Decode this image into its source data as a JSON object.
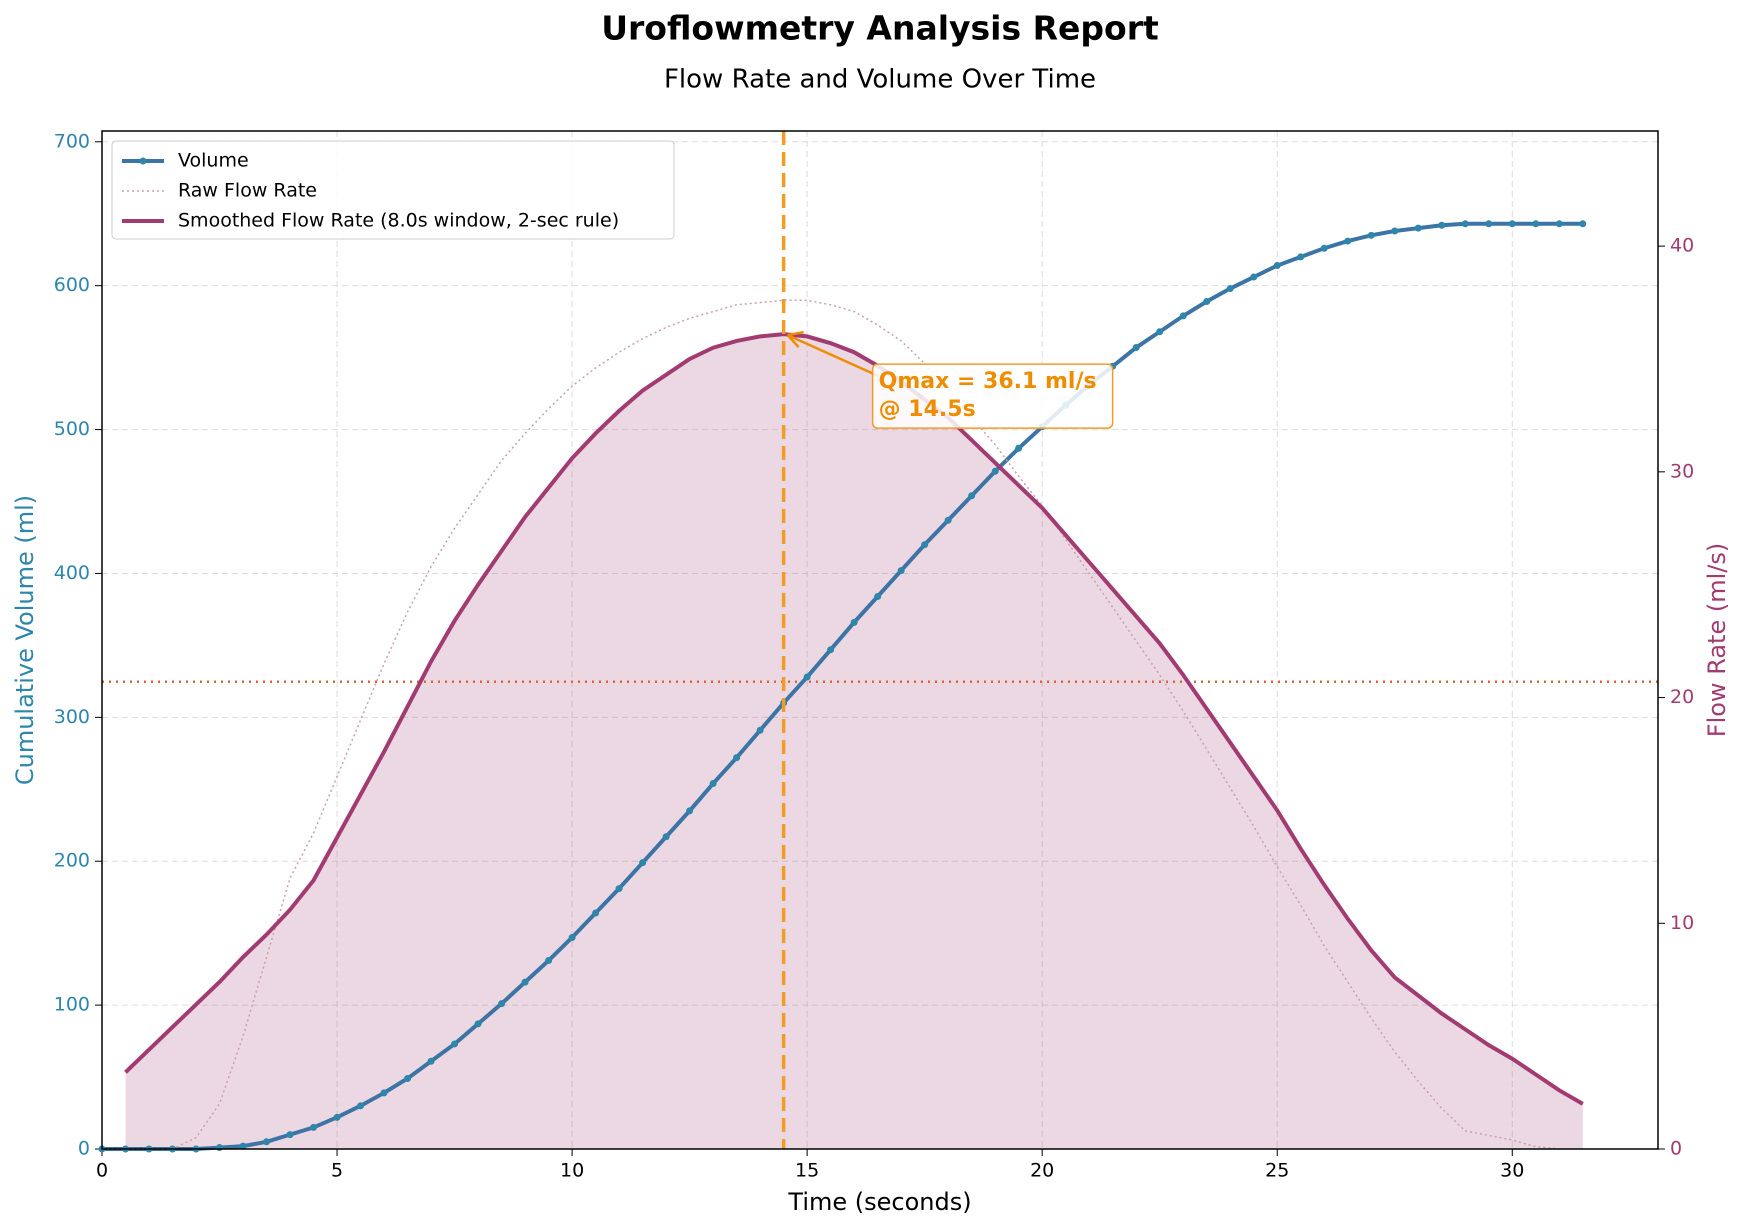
{
  "chart_data": {
    "type": "line",
    "title": "Uroflowmetry Analysis Report",
    "subtitle": "Flow Rate and Volume Over Time",
    "x_label": "Time (seconds)",
    "y_label": "Cumulative Volume (ml)",
    "y2_label": "Flow Rate (ml/s)",
    "xlim": [
      0,
      33.1
    ],
    "xticks": [
      0,
      5,
      10,
      15,
      20,
      25,
      30
    ],
    "ylim": [
      0,
      707.5
    ],
    "yticks": [
      0,
      100,
      200,
      300,
      400,
      500,
      600,
      700
    ],
    "y2lim": [
      0,
      45.1
    ],
    "y2ticks": [
      0,
      10,
      20,
      30,
      40
    ],
    "grid": true,
    "legend": "upper left",
    "series": [
      {
        "name": "Volume",
        "color": "#2e86ab",
        "x": [
          0,
          0.5,
          1,
          1.5,
          2,
          2.5,
          3,
          3.5,
          4,
          4.5,
          5,
          5.5,
          6,
          6.5,
          7,
          7.5,
          8,
          8.5,
          9,
          9.5,
          10,
          10.5,
          11,
          11.5,
          12,
          12.5,
          13,
          13.5,
          14,
          14.5,
          15,
          15.5,
          16,
          16.5,
          17,
          17.5,
          18,
          18.5,
          19,
          19.5,
          20,
          20.5,
          21,
          21.5,
          22,
          22.5,
          23,
          23.5,
          24,
          24.5,
          25,
          25.5,
          26,
          26.5,
          27,
          27.5,
          28,
          28.5,
          29,
          29.5,
          30,
          30.5,
          31,
          31.5
        ],
        "values": [
          0,
          0,
          0,
          0,
          0,
          1,
          2,
          5,
          10,
          15,
          22,
          30,
          39,
          49,
          61,
          73,
          87,
          101,
          116,
          131,
          147,
          164,
          181,
          199,
          217,
          235,
          254,
          272,
          291,
          310,
          328,
          347,
          366,
          384,
          402,
          420,
          437,
          454,
          471,
          487,
          502,
          517,
          531,
          544,
          557,
          568,
          579,
          589,
          598,
          606,
          614,
          620,
          626,
          631,
          635,
          638,
          640,
          642,
          643,
          643,
          643,
          643,
          643,
          643
        ]
      },
      {
        "name": "Raw Flow Rate",
        "color": "#c9a0a8",
        "axis": "y2",
        "x": [
          0,
          0.5,
          1,
          1.5,
          2,
          2.5,
          3,
          3.5,
          4,
          4.5,
          5,
          5.5,
          6,
          6.5,
          7,
          7.5,
          8,
          8.5,
          9,
          9.5,
          10,
          10.5,
          11,
          11.5,
          12,
          12.5,
          13,
          13.5,
          14,
          14.5,
          15,
          15.5,
          16,
          16.5,
          17,
          17.5,
          18,
          18.5,
          19,
          19.5,
          20,
          20.5,
          21,
          21.5,
          22,
          22.5,
          23,
          23.5,
          24,
          24.5,
          25,
          25.5,
          26,
          26.5,
          27,
          27.5,
          28,
          28.5,
          29,
          29.5,
          30,
          30.5,
          31
        ],
        "values": [
          0,
          0,
          0,
          0,
          0.5,
          2,
          5,
          8.5,
          12,
          14,
          16.5,
          19,
          21.5,
          23.8,
          25.8,
          27.5,
          29,
          30.5,
          31.7,
          32.8,
          33.8,
          34.6,
          35.3,
          35.9,
          36.4,
          36.8,
          37.1,
          37.4,
          37.5,
          37.6,
          37.6,
          37.4,
          37.1,
          36.5,
          35.8,
          34.8,
          33.7,
          32.4,
          31.2,
          29.8,
          28.5,
          27,
          25.5,
          24,
          22.5,
          21,
          19.4,
          17.7,
          16,
          14.3,
          12.5,
          10.8,
          9,
          7.4,
          5.8,
          4.3,
          3,
          1.8,
          0.8,
          0.6,
          0.4,
          0.1,
          0
        ]
      },
      {
        "name": "Smoothed Flow Rate (8.0s window, 2-sec rule)",
        "color": "#a23b72",
        "axis": "y2",
        "x": [
          0.5,
          1,
          1.5,
          2,
          2.5,
          3,
          3.5,
          4,
          4.5,
          5,
          5.5,
          6,
          6.5,
          7,
          7.5,
          8,
          8.5,
          9,
          9.5,
          10,
          10.5,
          11,
          11.5,
          12,
          12.5,
          13,
          13.5,
          14,
          14.5,
          15,
          15.5,
          16,
          16.5,
          17,
          17.5,
          18,
          18.5,
          19,
          19.5,
          20,
          20.5,
          21,
          21.5,
          22,
          22.5,
          23,
          23.5,
          24,
          24.5,
          25,
          25.5,
          26,
          26.5,
          27,
          27.5,
          28,
          28.5,
          29,
          29.5,
          30,
          30.5,
          31,
          31.5
        ],
        "values": [
          3.4,
          4.4,
          5.4,
          6.4,
          7.4,
          8.5,
          9.5,
          10.6,
          11.9,
          13.8,
          15.7,
          17.6,
          19.6,
          21.6,
          23.4,
          25,
          26.5,
          28,
          29.3,
          30.6,
          31.7,
          32.7,
          33.6,
          34.3,
          35,
          35.5,
          35.8,
          36,
          36.1,
          36,
          35.7,
          35.3,
          34.7,
          34,
          33.2,
          32.4,
          31.4,
          30.4,
          29.4,
          28.4,
          27.2,
          26,
          24.8,
          23.6,
          22.4,
          21,
          19.5,
          18,
          16.5,
          15,
          13.3,
          11.7,
          10.2,
          8.8,
          7.6,
          6.8,
          6,
          5.3,
          4.6,
          4,
          3.3,
          2.6,
          2
        ]
      }
    ],
    "qmax_time": 14.5,
    "qmax": 36.1,
    "average_flow": 20.7,
    "annotation": [
      "Qmax = 36.1 ml/s",
      "@ 14.5s"
    ]
  }
}
